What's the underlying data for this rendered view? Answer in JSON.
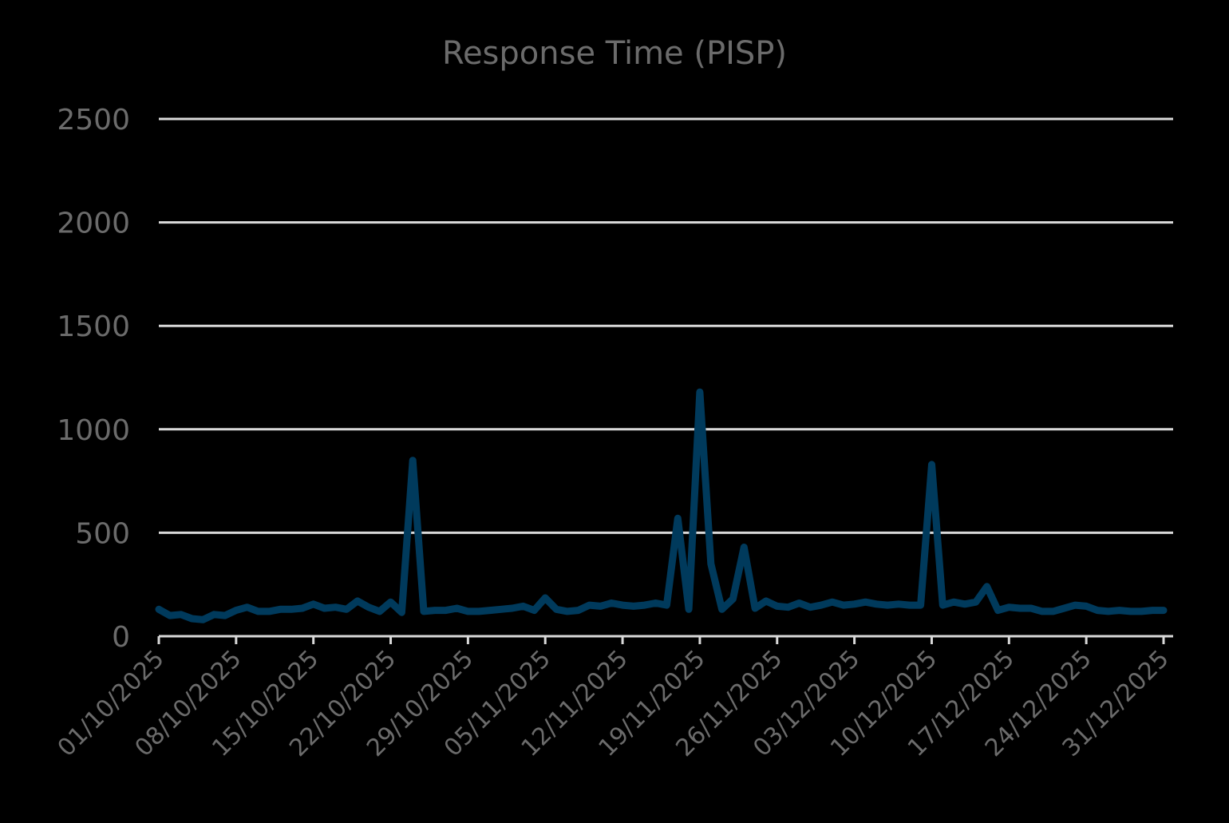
{
  "chart_data": {
    "type": "line",
    "title": "Response Time (PISP)",
    "xlabel": "",
    "ylabel": "",
    "ylim": [
      0,
      2500
    ],
    "yticks": [
      0,
      500,
      1000,
      1500,
      2000,
      2500
    ],
    "grid": true,
    "legend": null,
    "colors": {
      "line": "#003a5c",
      "grid": "#d9d9d9",
      "text": "#6b6b6b",
      "background": "#000000"
    },
    "x_start": "01/10/2025",
    "x_end": "31/12/2025",
    "xtick_labels": [
      "01/10/2025",
      "08/10/2025",
      "15/10/2025",
      "22/10/2025",
      "29/10/2025",
      "05/11/2025",
      "12/11/2025",
      "19/11/2025",
      "26/11/2025",
      "03/12/2025",
      "10/12/2025",
      "17/12/2025",
      "24/12/2025",
      "31/12/2025"
    ],
    "series": [
      {
        "name": "Response Time (PISP)",
        "values": [
          130,
          100,
          105,
          85,
          80,
          105,
          100,
          125,
          140,
          120,
          120,
          130,
          130,
          135,
          155,
          135,
          140,
          130,
          170,
          140,
          120,
          165,
          115,
          850,
          120,
          125,
          125,
          135,
          120,
          120,
          125,
          130,
          135,
          145,
          125,
          185,
          130,
          120,
          125,
          150,
          145,
          160,
          150,
          145,
          150,
          160,
          150,
          570,
          130,
          1180,
          350,
          130,
          180,
          430,
          135,
          170,
          145,
          140,
          160,
          140,
          150,
          165,
          150,
          155,
          165,
          155,
          150,
          155,
          150,
          150,
          830,
          150,
          165,
          155,
          165,
          240,
          125,
          140,
          135,
          135,
          120,
          120,
          135,
          150,
          145,
          125,
          120,
          125,
          120,
          120,
          125,
          125
        ]
      }
    ]
  }
}
